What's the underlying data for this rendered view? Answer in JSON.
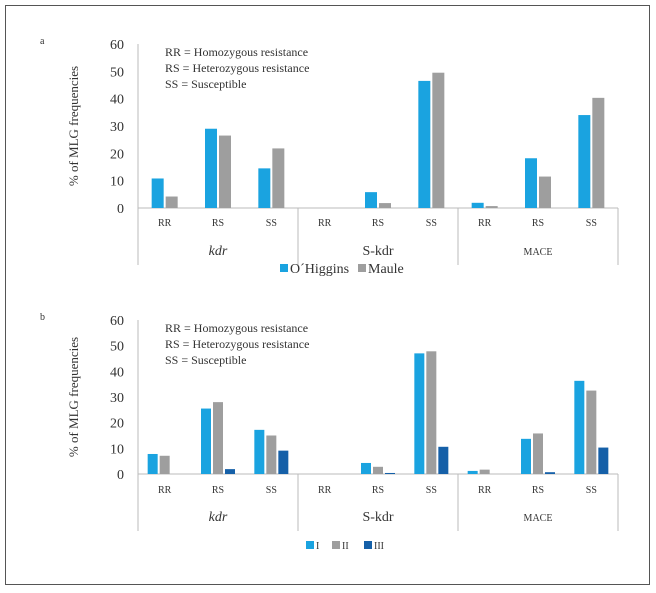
{
  "chart_data": [
    {
      "type": "bar",
      "panel_label": "a",
      "ylabel": "% of MLG frequencies",
      "ylim": [
        0,
        60
      ],
      "yticks": [
        "0",
        "10",
        "20",
        "30",
        "40",
        "50",
        "60"
      ],
      "groups": [
        {
          "label": "kdr",
          "italic": true,
          "categories": [
            "RR",
            "RS",
            "SS"
          ]
        },
        {
          "label": "S-kdr",
          "italic_part": "kdr",
          "categories": [
            "RR",
            "RS",
            "SS"
          ]
        },
        {
          "label": "MACE",
          "categories": [
            "RR",
            "RS",
            "SS"
          ]
        }
      ],
      "annotations": [
        "RR = Homozygous resistance",
        "RS = Heterozygous resistance",
        "SS = Susceptible"
      ],
      "legend_position": "bottom",
      "series": [
        {
          "name": "O´Higgins",
          "color": "#1aa3e0",
          "values": [
            10.8,
            29.0,
            14.5,
            0,
            5.8,
            46.5,
            1.9,
            18.2,
            34.0
          ]
        },
        {
          "name": "Maule",
          "color": "#9e9e9e",
          "values": [
            4.2,
            26.5,
            21.8,
            0,
            1.8,
            49.5,
            0.7,
            11.5,
            40.3
          ]
        }
      ]
    },
    {
      "type": "bar",
      "panel_label": "b",
      "ylabel": "% of MLG frequencies",
      "ylim": [
        0,
        60
      ],
      "yticks": [
        "0",
        "10",
        "20",
        "30",
        "40",
        "50",
        "60"
      ],
      "groups": [
        {
          "label": "kdr",
          "italic": true,
          "categories": [
            "RR",
            "RS",
            "SS"
          ]
        },
        {
          "label": "S-kdr",
          "italic_part": "kdr",
          "categories": [
            "RR",
            "RS",
            "SS"
          ]
        },
        {
          "label": "MACE",
          "categories": [
            "RR",
            "RS",
            "SS"
          ]
        }
      ],
      "annotations": [
        "RR = Homozygous resistance",
        "RS = Heterozygous resistance",
        "SS = Susceptible"
      ],
      "legend_position": "bottom",
      "series": [
        {
          "name": "I",
          "color": "#1aa3e0",
          "values": [
            7.8,
            25.5,
            17.2,
            0,
            4.3,
            47.0,
            1.2,
            13.7,
            36.3
          ]
        },
        {
          "name": "II",
          "color": "#9e9e9e",
          "values": [
            7.1,
            28.0,
            15.0,
            0,
            2.8,
            47.8,
            1.7,
            15.8,
            32.5
          ]
        },
        {
          "name": "III",
          "color": "#1560a8",
          "values": [
            0,
            1.9,
            9.1,
            0,
            0.4,
            10.6,
            0,
            0.7,
            10.3
          ]
        }
      ]
    }
  ]
}
